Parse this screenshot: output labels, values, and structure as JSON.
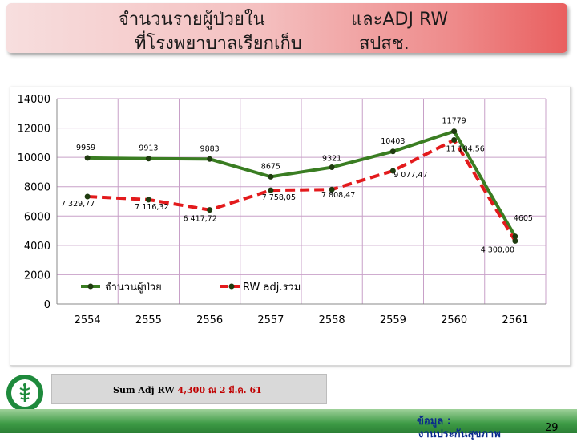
{
  "slide": {
    "title_line1_left": "จำนวนรายผู้ป่วยใน",
    "title_line1_right": "และADJ RW",
    "title_line2_left": "ที่โรงพยาบาลเรียกเก็บ",
    "title_line2_right": "สปสช.",
    "footer_label": "Sum Adj RW",
    "footer_value": "4,300 ณ 2 มี.ค. 61",
    "source_label": "ข้อมูล :",
    "source_line2": "งานประกันสุขภาพ",
    "page_number": "29"
  },
  "colors": {
    "series_patients": "#3a7d22",
    "series_rw": "#e31a1c",
    "marker": "#1f3b0f",
    "grid": "#c8a0c8"
  },
  "chart_data": {
    "type": "line",
    "categories": [
      "2554",
      "2555",
      "2556",
      "2557",
      "2558",
      "2559",
      "2560",
      "2561"
    ],
    "ylim": [
      0,
      14000
    ],
    "yticks": [
      "0",
      "2000",
      "4000",
      "6000",
      "8000",
      "10000",
      "12000",
      "14000"
    ],
    "grid": true,
    "legend_position": "bottom-left",
    "series": [
      {
        "name": "จำนวนผู้ป่วย",
        "values": [
          9959,
          9913,
          9883,
          8675,
          9321,
          10403,
          11779,
          4605
        ],
        "labels": [
          "9959",
          "9913",
          "9883",
          "8675",
          "9321",
          "10403",
          "11779",
          "4605"
        ]
      },
      {
        "name": "RW adj.รวม",
        "values": [
          7329.77,
          7116.32,
          6417.72,
          7758.05,
          7808.47,
          9077.47,
          11184.56,
          4300.0
        ],
        "labels": [
          "7 329,77",
          "7 116,32",
          "6 417,72",
          "7 758,05",
          "7 808,47",
          "9 077,47",
          "11 184,56",
          "4 300,00"
        ]
      }
    ]
  }
}
